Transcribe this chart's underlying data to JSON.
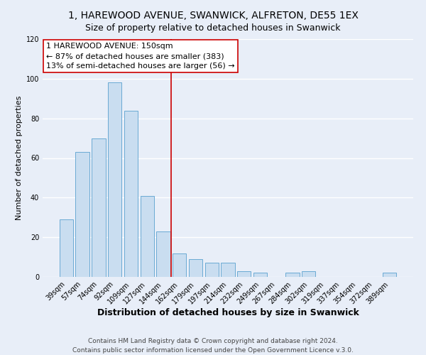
{
  "title": "1, HAREWOOD AVENUE, SWANWICK, ALFRETON, DE55 1EX",
  "subtitle": "Size of property relative to detached houses in Swanwick",
  "xlabel": "Distribution of detached houses by size in Swanwick",
  "ylabel": "Number of detached properties",
  "bar_labels": [
    "39sqm",
    "57sqm",
    "74sqm",
    "92sqm",
    "109sqm",
    "127sqm",
    "144sqm",
    "162sqm",
    "179sqm",
    "197sqm",
    "214sqm",
    "232sqm",
    "249sqm",
    "267sqm",
    "284sqm",
    "302sqm",
    "319sqm",
    "337sqm",
    "354sqm",
    "372sqm",
    "389sqm"
  ],
  "bar_values": [
    29,
    63,
    70,
    98,
    84,
    41,
    23,
    12,
    9,
    7,
    7,
    3,
    2,
    0,
    2,
    3,
    0,
    0,
    0,
    0,
    2
  ],
  "bar_color": "#c9ddf0",
  "bar_edge_color": "#6aaad4",
  "vline_color": "#cc0000",
  "ylim": [
    0,
    120
  ],
  "yticks": [
    0,
    20,
    40,
    60,
    80,
    100,
    120
  ],
  "annotation_title": "1 HAREWOOD AVENUE: 150sqm",
  "annotation_line1": "← 87% of detached houses are smaller (383)",
  "annotation_line2": "13% of semi-detached houses are larger (56) →",
  "footer1": "Contains HM Land Registry data © Crown copyright and database right 2024.",
  "footer2": "Contains public sector information licensed under the Open Government Licence v.3.0.",
  "bg_color": "#e8eef8",
  "plot_bg_color": "#e8eef8",
  "grid_color": "#ffffff",
  "title_fontsize": 10,
  "subtitle_fontsize": 9,
  "xlabel_fontsize": 9,
  "ylabel_fontsize": 8,
  "tick_fontsize": 7,
  "annotation_fontsize": 8,
  "footer_fontsize": 6.5
}
